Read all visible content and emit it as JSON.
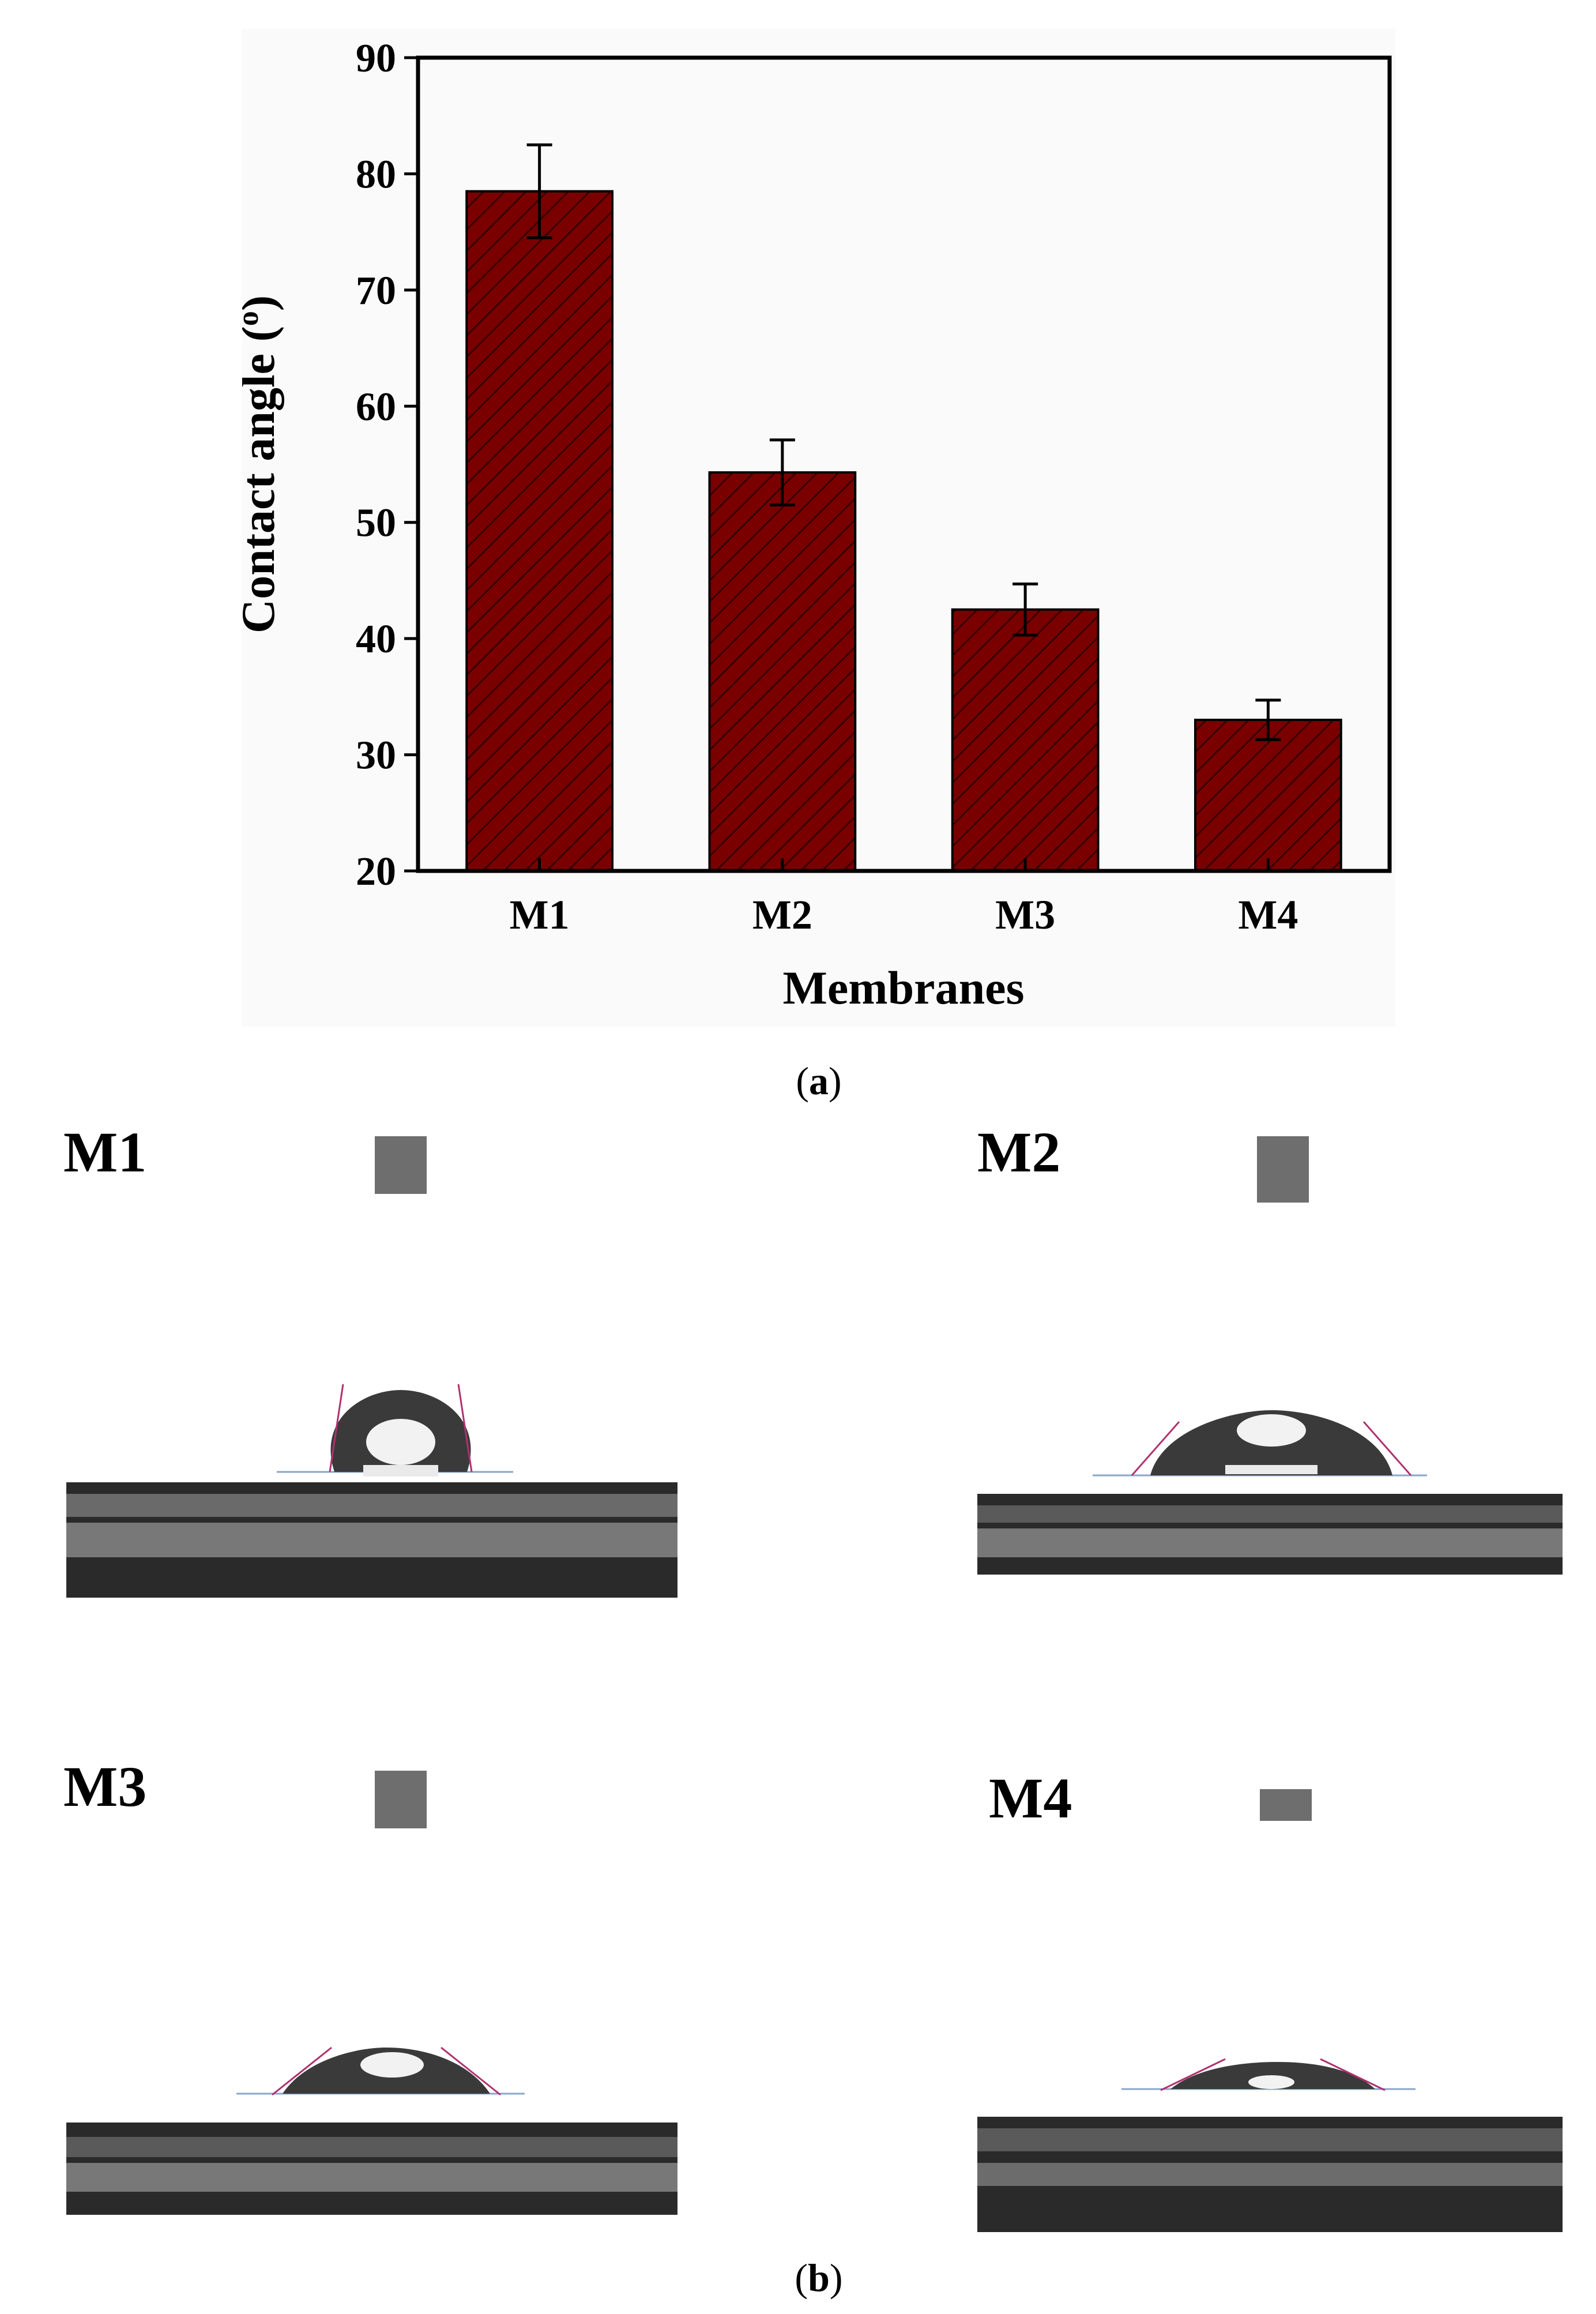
{
  "chart_data": {
    "type": "bar",
    "categories": [
      "M1",
      "M2",
      "M3",
      "M4"
    ],
    "values": [
      78.5,
      54.3,
      42.5,
      33.0
    ],
    "errors": [
      4.0,
      2.8,
      2.2,
      1.7
    ],
    "xlabel": "Membranes",
    "ylabel_main": "Contact angle (",
    "ylabel_sup": "o",
    "ylabel_end": ")",
    "ylim": [
      20,
      90
    ],
    "yticks": [
      20,
      30,
      40,
      50,
      60,
      70,
      80,
      90
    ],
    "bar_color": "#7a0000",
    "hatch_color": "#3a0000",
    "grid": false
  },
  "captions": {
    "a_open": "(",
    "a_letter": "a",
    "a_close": ")",
    "b_open": "(",
    "b_letter": "b",
    "b_close": ")"
  },
  "photos": [
    {
      "label": "M1",
      "contact_angle": 78.5
    },
    {
      "label": "M2",
      "contact_angle": 54.3
    },
    {
      "label": "M3",
      "contact_angle": 42.5
    },
    {
      "label": "M4",
      "contact_angle": 33.0
    }
  ]
}
